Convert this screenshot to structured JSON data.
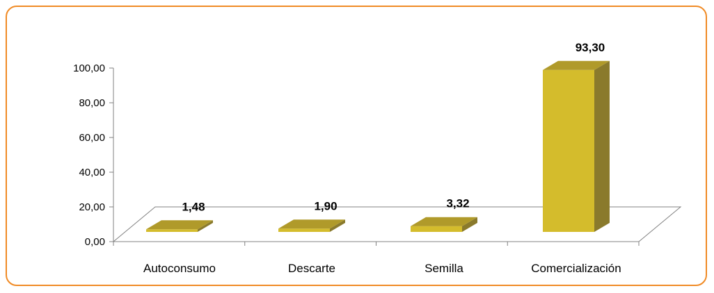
{
  "chart_data": {
    "type": "bar",
    "categories": [
      "Autoconsumo",
      "Descarte",
      "Semilla",
      "Comercialización"
    ],
    "values": [
      1.48,
      1.9,
      3.32,
      93.3
    ],
    "value_labels": [
      "1,48",
      "1,90",
      "3,32",
      "93,30"
    ],
    "ylim": [
      0,
      100
    ],
    "yticks": [
      "0,00",
      "20,00",
      "40,00",
      "60,00",
      "80,00",
      "100,00"
    ],
    "title": "",
    "xlabel": "",
    "ylabel": "",
    "grid": false,
    "legend": "none",
    "style": "3d-column"
  },
  "colors": {
    "frame_border": "#f08a24",
    "bar_front": "#d4bc2c",
    "bar_top": "#b09a2a",
    "bar_side": "#8a7a2c",
    "axis": "#808080"
  }
}
